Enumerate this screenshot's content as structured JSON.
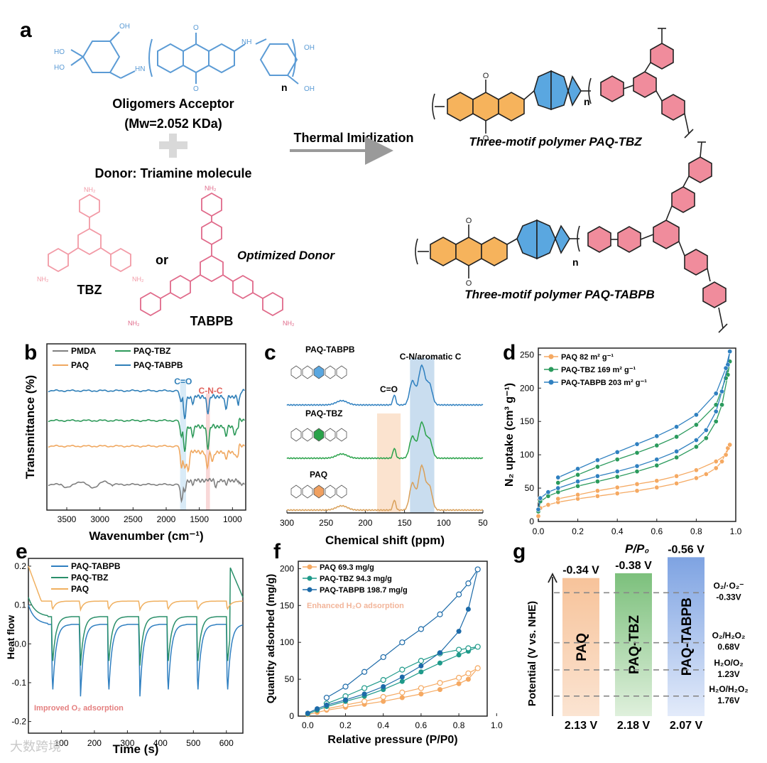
{
  "panel_labels": {
    "a": "a",
    "b": "b",
    "c": "c",
    "d": "d",
    "e": "e",
    "f": "f",
    "g": "g"
  },
  "panel_a": {
    "oligomer_title": "Oligomers Acceptor",
    "oligomer_mw": "(Mw=2.052 KDa)",
    "donor_title": "Donor: Triamine molecule",
    "or": "or",
    "tbz": "TBZ",
    "tabpb": "TABPB",
    "optimized": "Optimized Donor",
    "thermal": "Thermal Imidization",
    "poly1": "Three-motif polymer PAQ-TBZ",
    "poly2": "Three-motif polymer PAQ-TABPB",
    "n": "n",
    "nh2": "NH₂",
    "cooh": "HO",
    "oh": "OH",
    "nh": "NH",
    "hn": "HN",
    "o": "O",
    "n_atom": "N"
  },
  "chart_data": [
    {
      "panel": "b",
      "type": "line",
      "xlabel": "Wavenumber (cm⁻¹)",
      "ylabel": "Transmittance (%)",
      "xlim": [
        3800,
        800
      ],
      "xticks": [
        3500,
        3000,
        2500,
        2000,
        1500,
        1000
      ],
      "legend": [
        "PMDA",
        "PAQ",
        "PAQ-TBZ",
        "PAQ-TABPB"
      ],
      "annotations": [
        "C=O",
        "C-N-C"
      ],
      "series": [
        {
          "name": "PMDA",
          "color": "#7f7f7f"
        },
        {
          "name": "PAQ",
          "color": "#f0a860"
        },
        {
          "name": "PAQ-TBZ",
          "color": "#2e9a5a"
        },
        {
          "name": "PAQ-TABPB",
          "color": "#2f7fb8"
        }
      ]
    },
    {
      "panel": "c",
      "type": "line",
      "xlabel": "Chemical shift (ppm)",
      "xlim": [
        300,
        50
      ],
      "xticks": [
        300,
        250,
        200,
        150,
        100,
        50
      ],
      "labels": [
        "PAQ-TABPB",
        "PAQ-TBZ",
        "PAQ"
      ],
      "annotations": [
        "C=O",
        "C-N/aromatic C"
      ]
    },
    {
      "panel": "d",
      "type": "scatter",
      "xlabel": "P/P₀",
      "ylabel": "N₂ uptake (cm³ g⁻¹)",
      "xlim": [
        0,
        1.0
      ],
      "ylim": [
        0,
        260
      ],
      "xticks": [
        "0.0",
        "0.2",
        "0.4",
        "0.6",
        "0.8",
        "1.0"
      ],
      "yticks": [
        "0",
        "50",
        "100",
        "150",
        "200",
        "250"
      ],
      "legend": [
        "PAQ  82 m² g⁻¹",
        "PAQ-TBZ 169 m² g⁻¹",
        "PAQ-TABPB 203 m² g⁻¹"
      ],
      "series": [
        {
          "name": "PAQ",
          "color": "#f5a962",
          "adsorption": [
            [
              0.0,
              8
            ],
            [
              0.01,
              20
            ],
            [
              0.05,
              25
            ],
            [
              0.1,
              29
            ],
            [
              0.2,
              34
            ],
            [
              0.3,
              38
            ],
            [
              0.4,
              42
            ],
            [
              0.5,
              46
            ],
            [
              0.6,
              51
            ],
            [
              0.7,
              57
            ],
            [
              0.8,
              65
            ],
            [
              0.85,
              71
            ],
            [
              0.9,
              80
            ],
            [
              0.93,
              90
            ],
            [
              0.96,
              110
            ],
            [
              0.97,
              115
            ]
          ],
          "desorption": [
            [
              0.97,
              115
            ],
            [
              0.95,
              100
            ],
            [
              0.9,
              90
            ],
            [
              0.8,
              77
            ],
            [
              0.7,
              68
            ],
            [
              0.6,
              61
            ],
            [
              0.5,
              56
            ],
            [
              0.4,
              51
            ],
            [
              0.3,
              46
            ],
            [
              0.2,
              40
            ],
            [
              0.1,
              34
            ]
          ]
        },
        {
          "name": "PAQ-TBZ",
          "color": "#2a9a5c",
          "adsorption": [
            [
              0.0,
              15
            ],
            [
              0.01,
              30
            ],
            [
              0.05,
              38
            ],
            [
              0.1,
              44
            ],
            [
              0.2,
              53
            ],
            [
              0.3,
              60
            ],
            [
              0.4,
              67
            ],
            [
              0.5,
              75
            ],
            [
              0.6,
              84
            ],
            [
              0.7,
              96
            ],
            [
              0.8,
              112
            ],
            [
              0.85,
              125
            ],
            [
              0.9,
              150
            ],
            [
              0.93,
              175
            ],
            [
              0.96,
              220
            ],
            [
              0.97,
              240
            ]
          ],
          "desorption": [
            [
              0.97,
              240
            ],
            [
              0.95,
              215
            ],
            [
              0.9,
              175
            ],
            [
              0.8,
              145
            ],
            [
              0.7,
              127
            ],
            [
              0.6,
              114
            ],
            [
              0.5,
              103
            ],
            [
              0.4,
              93
            ],
            [
              0.3,
              82
            ],
            [
              0.2,
              70
            ],
            [
              0.1,
              58
            ]
          ]
        },
        {
          "name": "PAQ-TABPB",
          "color": "#2f80c0",
          "adsorption": [
            [
              0.0,
              18
            ],
            [
              0.01,
              35
            ],
            [
              0.05,
              44
            ],
            [
              0.1,
              50
            ],
            [
              0.2,
              60
            ],
            [
              0.3,
              68
            ],
            [
              0.4,
              75
            ],
            [
              0.5,
              83
            ],
            [
              0.6,
              93
            ],
            [
              0.7,
              105
            ],
            [
              0.8,
              122
            ],
            [
              0.85,
              137
            ],
            [
              0.9,
              165
            ],
            [
              0.93,
              195
            ],
            [
              0.96,
              235
            ],
            [
              0.97,
              255
            ]
          ],
          "desorption": [
            [
              0.97,
              255
            ],
            [
              0.95,
              230
            ],
            [
              0.9,
              192
            ],
            [
              0.8,
              160
            ],
            [
              0.7,
              142
            ],
            [
              0.6,
              128
            ],
            [
              0.5,
              116
            ],
            [
              0.4,
              104
            ],
            [
              0.3,
              92
            ],
            [
              0.2,
              79
            ],
            [
              0.1,
              66
            ]
          ]
        }
      ]
    },
    {
      "panel": "e",
      "type": "line",
      "xlabel": "Time (s)",
      "ylabel": "Heat flow",
      "xlim": [
        0,
        650
      ],
      "ylim": [
        -0.23,
        0.22
      ],
      "xticks": [
        "100",
        "200",
        "300",
        "400",
        "500",
        "600"
      ],
      "yticks": [
        "0.2",
        "0.1",
        "0.0",
        "-0.1",
        "-0.2"
      ],
      "legend": [
        "PAQ-TABPB",
        "PAQ-TBZ",
        "PAQ"
      ],
      "annotation": "Improved O₂ adsorption",
      "pulse_times": [
        70,
        155,
        240,
        335,
        420,
        510,
        600
      ],
      "series": [
        {
          "name": "PAQ-TABPB",
          "color": "#2f7fc0",
          "baseline": 0.05,
          "min": -0.2
        },
        {
          "name": "PAQ-TBZ",
          "color": "#2a8f6a",
          "baseline": 0.07,
          "min": -0.1
        },
        {
          "name": "PAQ",
          "color": "#f0b060",
          "baseline": 0.11,
          "min": 0.08
        }
      ]
    },
    {
      "panel": "f",
      "type": "scatter",
      "xlabel": "Relative pressure (P/P0)",
      "ylabel": "Quantity adsorbed (mg/g)",
      "xlim": [
        -0.05,
        0.95
      ],
      "ylim": [
        0,
        210
      ],
      "xticks": [
        "0.0",
        "0.2",
        "0.4",
        "0.6",
        "0.8",
        "1.0"
      ],
      "yticks": [
        "0",
        "50",
        "100",
        "150",
        "200"
      ],
      "legend": [
        "PAQ 69.3 mg/g",
        "PAQ-TBZ 94.3 mg/g",
        "PAQ-TABPB 198.7 mg/g"
      ],
      "annotation": "Enhanced H₂O adsorption",
      "series": [
        {
          "name": "PAQ",
          "color": "#f5a962",
          "adsorption": [
            [
              0.0,
              2
            ],
            [
              0.05,
              5
            ],
            [
              0.1,
              8
            ],
            [
              0.2,
              12
            ],
            [
              0.3,
              16
            ],
            [
              0.4,
              20
            ],
            [
              0.5,
              25
            ],
            [
              0.6,
              30
            ],
            [
              0.7,
              36
            ],
            [
              0.8,
              44
            ],
            [
              0.85,
              50
            ],
            [
              0.9,
              65
            ]
          ],
          "desorption": [
            [
              0.9,
              65
            ],
            [
              0.85,
              58
            ],
            [
              0.8,
              52
            ],
            [
              0.7,
              45
            ],
            [
              0.6,
              38
            ],
            [
              0.5,
              32
            ],
            [
              0.4,
              26
            ],
            [
              0.3,
              20
            ],
            [
              0.2,
              15
            ],
            [
              0.1,
              10
            ]
          ]
        },
        {
          "name": "PAQ-TBZ",
          "color": "#1f9a8a",
          "adsorption": [
            [
              0.0,
              3
            ],
            [
              0.05,
              8
            ],
            [
              0.1,
              13
            ],
            [
              0.2,
              20
            ],
            [
              0.3,
              27
            ],
            [
              0.4,
              36
            ],
            [
              0.5,
              47
            ],
            [
              0.6,
              60
            ],
            [
              0.7,
              72
            ],
            [
              0.8,
              83
            ],
            [
              0.85,
              88
            ],
            [
              0.9,
              94
            ]
          ],
          "desorption": [
            [
              0.9,
              94
            ],
            [
              0.85,
              92
            ],
            [
              0.8,
              90
            ],
            [
              0.7,
              85
            ],
            [
              0.6,
              75
            ],
            [
              0.5,
              63
            ],
            [
              0.4,
              49
            ],
            [
              0.3,
              38
            ],
            [
              0.2,
              27
            ],
            [
              0.1,
              17
            ]
          ]
        },
        {
          "name": "PAQ-TABPB",
          "color": "#1c6aa8",
          "adsorption": [
            [
              0.0,
              4
            ],
            [
              0.05,
              10
            ],
            [
              0.1,
              15
            ],
            [
              0.2,
              22
            ],
            [
              0.3,
              30
            ],
            [
              0.4,
              40
            ],
            [
              0.5,
              53
            ],
            [
              0.6,
              68
            ],
            [
              0.7,
              86
            ],
            [
              0.8,
              115
            ],
            [
              0.85,
              145
            ],
            [
              0.9,
              199
            ]
          ],
          "desorption": [
            [
              0.9,
              199
            ],
            [
              0.85,
              180
            ],
            [
              0.8,
              165
            ],
            [
              0.7,
              138
            ],
            [
              0.6,
              118
            ],
            [
              0.5,
              100
            ],
            [
              0.4,
              80
            ],
            [
              0.3,
              60
            ],
            [
              0.2,
              40
            ],
            [
              0.1,
              25
            ]
          ]
        }
      ]
    },
    {
      "panel": "g",
      "type": "bar",
      "ylabel": "Potential (V vs. NHE)",
      "bars": [
        {
          "name": "PAQ",
          "top": "-0.34 V",
          "bottom": "2.13 V",
          "top_v": -0.34,
          "bottom_v": 2.13,
          "color": "#f5c9a0"
        },
        {
          "name": "PAQ-TBZ",
          "top": "-0.38 V",
          "bottom": "2.18 V",
          "top_v": -0.38,
          "bottom_v": 2.18,
          "color": "#8fc98f"
        },
        {
          "name": "PAQ-TABPB",
          "top": "-0.56 V",
          "bottom": "2.07 V",
          "top_v": -0.56,
          "bottom_v": 2.07,
          "color": "#9bb7e6"
        }
      ],
      "levels": [
        {
          "label1": "O₂/·O₂⁻",
          "label2": "-0.33V",
          "v": -0.33
        },
        {
          "label1": "O₂/H₂O₂",
          "label2": "0.68V",
          "v": 0.68
        },
        {
          "label1": "H₂O/O₂",
          "label2": "1.23V",
          "v": 1.23
        },
        {
          "label1": "H₂O/H₂O₂",
          "label2": "1.76V",
          "v": 1.76
        }
      ]
    }
  ],
  "watermark": "大数跨境"
}
